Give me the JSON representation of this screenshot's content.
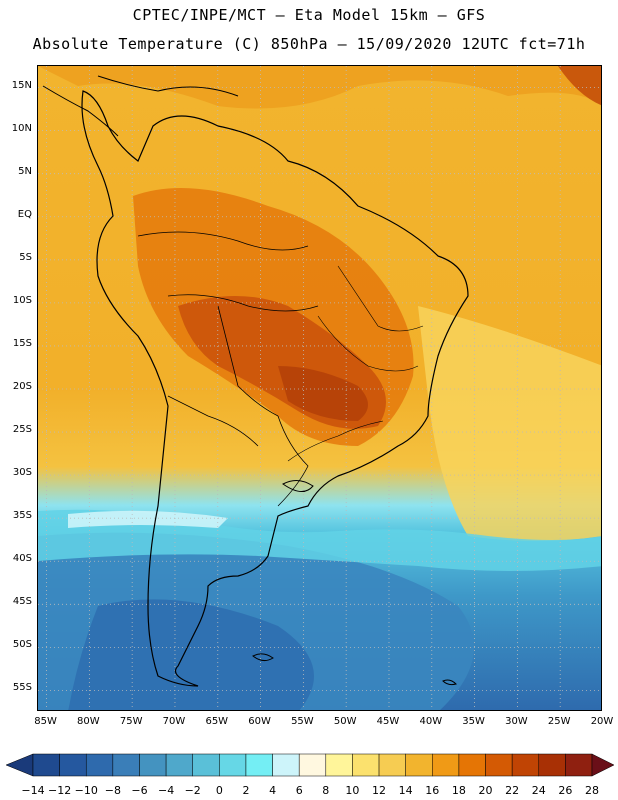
{
  "header": {
    "line1": "CPTEC/INPE/MCT –  Eta Model 15km – GFS",
    "line2": "Absolute Temperature (C) 850hPa – 15/09/2020 12UTC fct=71h"
  },
  "axes": {
    "lat_labels": [
      "15N",
      "10N",
      "5N",
      "EQ",
      "5S",
      "10S",
      "15S",
      "20S",
      "25S",
      "30S",
      "35S",
      "40S",
      "45S",
      "50S",
      "55S"
    ],
    "lon_labels": [
      "85W",
      "80W",
      "75W",
      "70W",
      "65W",
      "60W",
      "55W",
      "50W",
      "45W",
      "40W",
      "35W",
      "30W",
      "25W",
      "20W"
    ],
    "lat_range": [
      17.5,
      -57.5
    ],
    "lon_range": [
      -86,
      -20
    ],
    "grid": true
  },
  "colorbar": {
    "labels": [
      "-14",
      "-12",
      "-10",
      "-8",
      "-6",
      "-4",
      "-2",
      "0",
      "2",
      "4",
      "6",
      "8",
      "10",
      "12",
      "14",
      "16",
      "18",
      "20",
      "22",
      "24",
      "26",
      "28"
    ],
    "colors": [
      "#1f4a8f",
      "#25589f",
      "#2e6aad",
      "#3a7eb8",
      "#4493c0",
      "#4fa8cb",
      "#5ac0d8",
      "#66d7e6",
      "#74eef4",
      "#cdf4fa",
      "#fff8e0",
      "#fff59a",
      "#fbe16e",
      "#f6cc52",
      "#f2b42e",
      "#f09a16",
      "#e57505",
      "#d45a04",
      "#c04404",
      "#a83005",
      "#8f2010"
    ],
    "extend_low_color": "#1a3a7a",
    "extend_high_color": "#6a0f18"
  },
  "regions": [
    {
      "name": "south-atlantic-cold-water",
      "color": "#3b95c6"
    },
    {
      "name": "subtropical-warm",
      "color": "#f2b02a"
    },
    {
      "name": "central-brazil-hot",
      "color": "#cc5208"
    }
  ]
}
